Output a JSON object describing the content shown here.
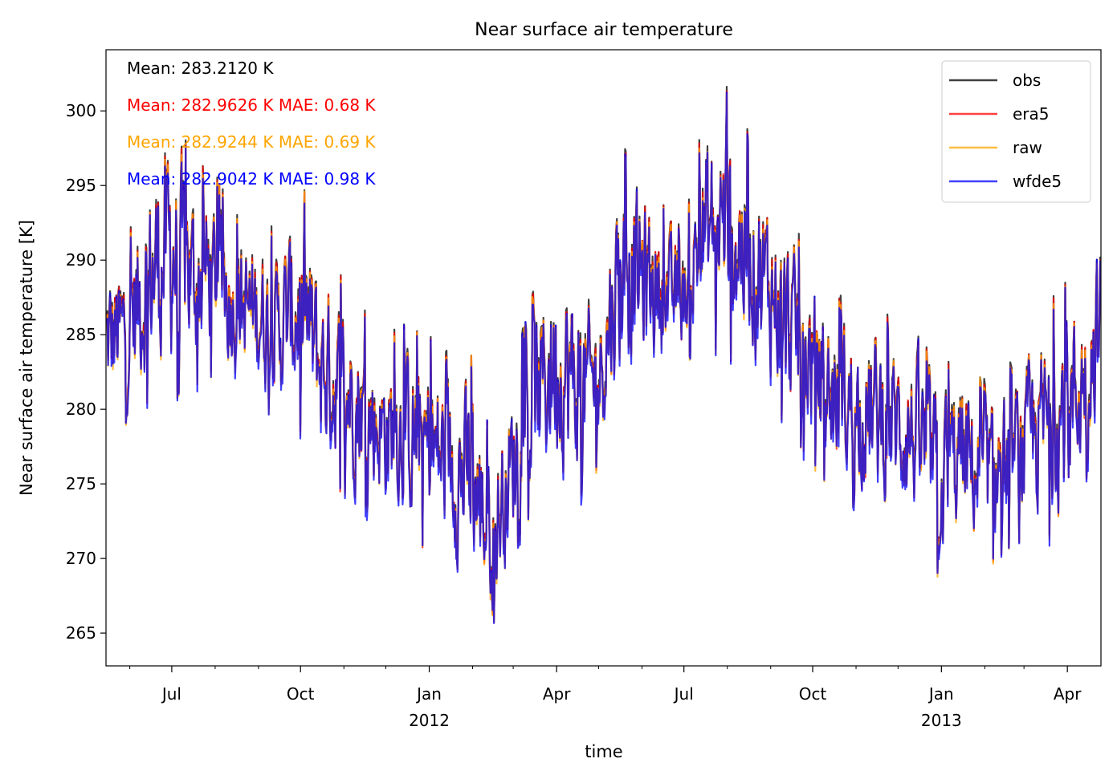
{
  "chart_data": {
    "type": "line",
    "title": "Near surface air temperature",
    "xlabel": "time",
    "ylabel": "Near surface air temperature [K]",
    "xlim": [
      "2011-05-15",
      "2013-04-25"
    ],
    "ylim": [
      262.8,
      304.1
    ],
    "yticks": [
      265,
      270,
      275,
      280,
      285,
      290,
      295,
      300
    ],
    "xticks": [
      {
        "date": "2011-07-01",
        "label": "Jul",
        "sublabel": ""
      },
      {
        "date": "2011-10-01",
        "label": "Oct",
        "sublabel": ""
      },
      {
        "date": "2012-01-01",
        "label": "Jan",
        "sublabel": "2012"
      },
      {
        "date": "2012-04-01",
        "label": "Apr",
        "sublabel": ""
      },
      {
        "date": "2012-07-01",
        "label": "Jul",
        "sublabel": ""
      },
      {
        "date": "2012-10-01",
        "label": "Oct",
        "sublabel": ""
      },
      {
        "date": "2013-01-01",
        "label": "Jan",
        "sublabel": "2013"
      },
      {
        "date": "2013-04-01",
        "label": "Apr",
        "sublabel": ""
      }
    ],
    "minor_tick_months": [
      "2011-06-01",
      "2011-08-01",
      "2011-09-01",
      "2011-11-01",
      "2011-12-01",
      "2012-02-01",
      "2012-03-01",
      "2012-05-01",
      "2012-06-01",
      "2012-08-01",
      "2012-09-01",
      "2012-11-01",
      "2012-12-01",
      "2013-02-01",
      "2013-03-01"
    ],
    "legend_position": "top-right",
    "series": [
      {
        "name": "obs",
        "color": "#000000",
        "opacity": 0.75
      },
      {
        "name": "era5",
        "color": "#ff0000",
        "opacity": 0.75
      },
      {
        "name": "raw",
        "color": "#ffa500",
        "opacity": 0.75
      },
      {
        "name": "wfde5",
        "color": "#0000ff",
        "opacity": 0.75
      }
    ],
    "envelope": {
      "x": [
        "2011-05-15",
        "2011-06-01",
        "2011-06-15",
        "2011-07-01",
        "2011-07-15",
        "2011-08-01",
        "2011-08-15",
        "2011-09-01",
        "2011-09-15",
        "2011-10-01",
        "2011-10-15",
        "2011-11-01",
        "2011-11-15",
        "2011-12-01",
        "2011-12-15",
        "2012-01-01",
        "2012-01-15",
        "2012-02-01",
        "2012-02-15",
        "2012-03-01",
        "2012-03-15",
        "2012-04-01",
        "2012-04-15",
        "2012-05-01",
        "2012-05-15",
        "2012-06-01",
        "2012-06-15",
        "2012-07-01",
        "2012-07-15",
        "2012-08-01",
        "2012-08-15",
        "2012-09-01",
        "2012-09-15",
        "2012-10-01",
        "2012-10-15",
        "2012-11-01",
        "2012-11-15",
        "2012-12-01",
        "2012-12-15",
        "2013-01-01",
        "2013-01-15",
        "2013-02-01",
        "2013-02-15",
        "2013-03-01",
        "2013-03-15",
        "2013-04-01",
        "2013-04-15",
        "2013-04-25"
      ],
      "upper": [
        291,
        292,
        298,
        301.5,
        297,
        296,
        293,
        293,
        292,
        296,
        291,
        289,
        287,
        285,
        286,
        285,
        284,
        284,
        278,
        283,
        288,
        293,
        290,
        288,
        298,
        297,
        294,
        292,
        300,
        302,
        299,
        296,
        293,
        290,
        288,
        287,
        287,
        286,
        285,
        283,
        284,
        282,
        283,
        284,
        287,
        289,
        290,
        293
      ],
      "lower": [
        278,
        279,
        280,
        280,
        281,
        282,
        281,
        280,
        279,
        278,
        275,
        274,
        273,
        272,
        271,
        270,
        269,
        266,
        264.8,
        270,
        273,
        274,
        273,
        276,
        280,
        281,
        282,
        283,
        284,
        283,
        282,
        280,
        278,
        276,
        274,
        273,
        272,
        272,
        271,
        268,
        270,
        269,
        270,
        271,
        271,
        271,
        275,
        279
      ]
    },
    "annotations": [
      {
        "text": "Mean: 283.2120 K",
        "color": "#000000"
      },
      {
        "text": "Mean: 282.9626 K MAE: 0.68 K",
        "color": "#ff0000"
      },
      {
        "text": "Mean: 282.9244 K MAE: 0.69 K",
        "color": "#ffa500"
      },
      {
        "text": "Mean: 282.9042 K MAE: 0.98 K",
        "color": "#0000ff"
      }
    ]
  }
}
